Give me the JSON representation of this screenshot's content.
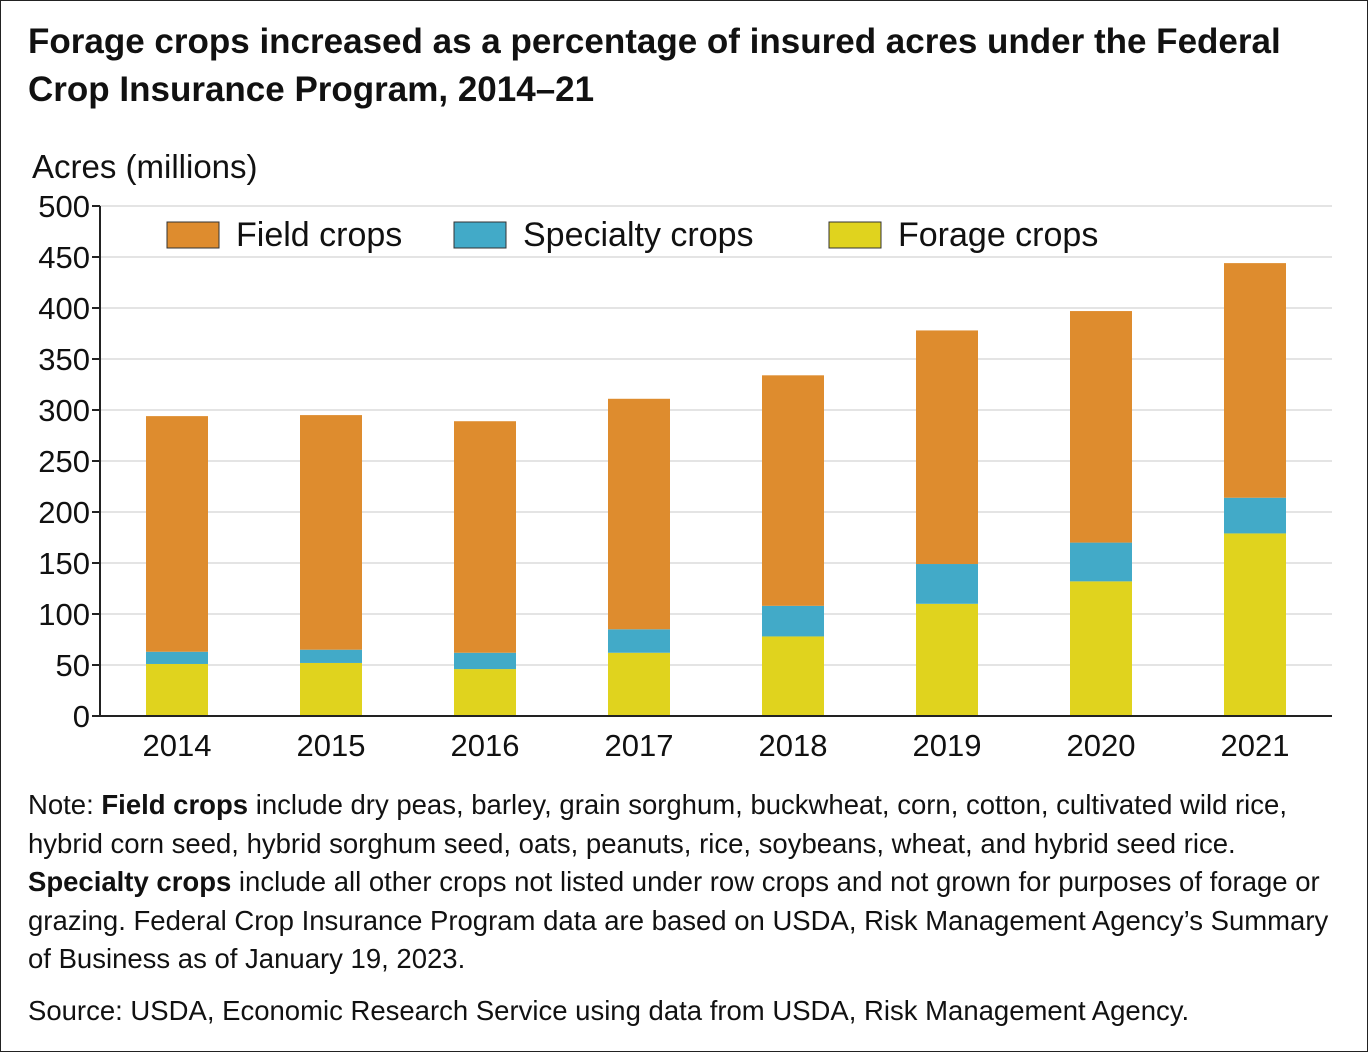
{
  "title": "Forage crops increased as a percentage of insured acres under the Federal Crop Insurance Program, 2014–21",
  "chart_data": {
    "type": "bar",
    "stacked": true,
    "ylabel": "Acres (millions)",
    "xlabel": "",
    "ylim": [
      0,
      500
    ],
    "yticks": [
      0,
      50,
      100,
      150,
      200,
      250,
      300,
      350,
      400,
      450,
      500
    ],
    "grid": true,
    "legend_placement": "top",
    "categories": [
      "2014",
      "2015",
      "2016",
      "2017",
      "2018",
      "2019",
      "2020",
      "2021"
    ],
    "series": [
      {
        "name": "Forage crops",
        "color": "#E0D31E",
        "values": [
          51,
          52,
          46,
          62,
          78,
          110,
          132,
          179
        ]
      },
      {
        "name": "Specialty crops",
        "color": "#42AAC8",
        "values": [
          12,
          13,
          16,
          23,
          30,
          39,
          38,
          35
        ]
      },
      {
        "name": "Field crops",
        "color": "#DE8C2E",
        "values": [
          231,
          230,
          227,
          226,
          226,
          229,
          227,
          230
        ]
      }
    ],
    "legend_order": [
      "Field crops",
      "Specialty crops",
      "Forage crops"
    ]
  },
  "note": {
    "prefix": "Note: ",
    "b1": "Field crops",
    "t1": " include dry peas, barley, grain sorghum, buckwheat, corn, cotton, cultivated wild rice, hybrid corn seed, hybrid sorghum seed, oats, peanuts, rice, soybeans, wheat, and hybrid seed rice. ",
    "b2": "Specialty crops",
    "t2": " include all other crops not listed under row crops and not grown for purposes of forage or grazing. Federal Crop Insurance Program data are based on USDA, Risk Management Agency’s Summary of Business as of January 19, 2023."
  },
  "source": "Source: USDA, Economic Research Service using data from USDA, Risk Management Agency."
}
